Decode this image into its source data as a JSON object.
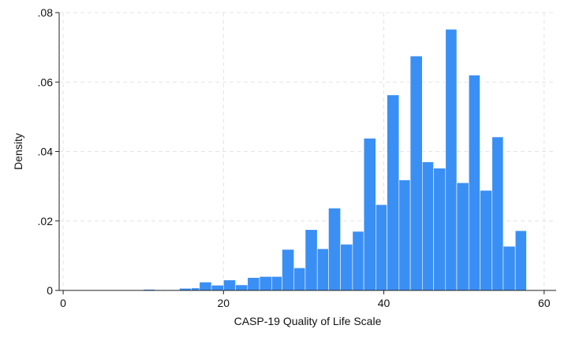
{
  "chart_data": {
    "type": "bar",
    "subtype": "histogram",
    "title": "",
    "xlabel": "CASP-19 Quality of Life Scale",
    "ylabel": "Density",
    "xlim": [
      -0.5,
      61.5
    ],
    "ylim": [
      0,
      0.08
    ],
    "xticks": [
      0,
      20,
      40,
      60
    ],
    "yticks": [
      0,
      0.02,
      0.04,
      0.06,
      0.08
    ],
    "xtick_labels": [
      "0",
      "20",
      "40",
      "60"
    ],
    "ytick_labels": [
      "0",
      ".02",
      ".04",
      ".06",
      ".08"
    ],
    "grid": true,
    "bar_color": "#3a8ff5",
    "bins": [
      {
        "x0": 10,
        "x1": 11.5,
        "value": 0.0003
      },
      {
        "x0": 11.5,
        "x1": 13,
        "value": 0.0002
      },
      {
        "x0": 13,
        "x1": 14.5,
        "value": 0.0002
      },
      {
        "x0": 14.5,
        "x1": 16,
        "value": 0.0006
      },
      {
        "x0": 16,
        "x1": 17,
        "value": 0.0007
      },
      {
        "x0": 17,
        "x1": 18.5,
        "value": 0.0024
      },
      {
        "x0": 18.5,
        "x1": 20,
        "value": 0.0015
      },
      {
        "x0": 20,
        "x1": 21.5,
        "value": 0.003
      },
      {
        "x0": 21.5,
        "x1": 23,
        "value": 0.0016
      },
      {
        "x0": 23,
        "x1": 24.5,
        "value": 0.0037
      },
      {
        "x0": 24.5,
        "x1": 26,
        "value": 0.004
      },
      {
        "x0": 26,
        "x1": 27.3,
        "value": 0.004
      },
      {
        "x0": 27.3,
        "x1": 28.8,
        "value": 0.0118
      },
      {
        "x0": 28.8,
        "x1": 30.2,
        "value": 0.0065
      },
      {
        "x0": 30.2,
        "x1": 31.7,
        "value": 0.0175
      },
      {
        "x0": 31.7,
        "x1": 33.1,
        "value": 0.012
      },
      {
        "x0": 33.1,
        "x1": 34.6,
        "value": 0.0237
      },
      {
        "x0": 34.6,
        "x1": 36.1,
        "value": 0.0133
      },
      {
        "x0": 36.1,
        "x1": 37.5,
        "value": 0.017
      },
      {
        "x0": 37.5,
        "x1": 39,
        "value": 0.0438
      },
      {
        "x0": 39,
        "x1": 40.4,
        "value": 0.0247
      },
      {
        "x0": 40.4,
        "x1": 41.9,
        "value": 0.0563
      },
      {
        "x0": 41.9,
        "x1": 43.3,
        "value": 0.0318
      },
      {
        "x0": 43.3,
        "x1": 44.8,
        "value": 0.0675
      },
      {
        "x0": 44.8,
        "x1": 46.2,
        "value": 0.037
      },
      {
        "x0": 46.2,
        "x1": 47.7,
        "value": 0.0352
      },
      {
        "x0": 47.7,
        "x1": 49.1,
        "value": 0.0752
      },
      {
        "x0": 49.1,
        "x1": 50.6,
        "value": 0.031
      },
      {
        "x0": 50.6,
        "x1": 52,
        "value": 0.062
      },
      {
        "x0": 52,
        "x1": 53.5,
        "value": 0.0288
      },
      {
        "x0": 53.5,
        "x1": 54.9,
        "value": 0.0442
      },
      {
        "x0": 54.9,
        "x1": 56.4,
        "value": 0.0127
      },
      {
        "x0": 56.4,
        "x1": 57.8,
        "value": 0.0172
      }
    ]
  }
}
